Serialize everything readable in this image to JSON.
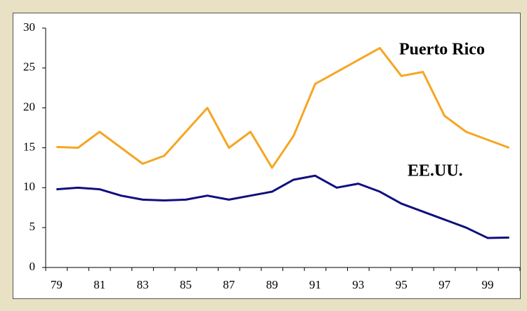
{
  "chart_data": {
    "type": "line",
    "categories": [
      "79",
      null,
      "81",
      null,
      "83",
      null,
      "85",
      null,
      "87",
      null,
      "89",
      null,
      "91",
      null,
      "93",
      null,
      "95",
      null,
      "97",
      null,
      "99",
      null
    ],
    "series": [
      {
        "name": "Puerto Rico",
        "color": "#f5a623",
        "values": [
          15.1,
          15,
          17,
          15,
          13,
          14,
          17,
          20,
          15,
          17,
          12.5,
          16.5,
          23,
          24.5,
          26,
          27.5,
          24,
          24.5,
          19,
          17,
          16,
          15
        ]
      },
      {
        "name": "EE.UU.",
        "color": "#10107f",
        "values": [
          9.8,
          10,
          9.8,
          9,
          8.5,
          8.4,
          8.5,
          9,
          8.5,
          9,
          9.5,
          11,
          11.5,
          10,
          10.5,
          9.5,
          8,
          7,
          6,
          5,
          3.7,
          3.75
        ]
      }
    ],
    "ylim": [
      0,
      30
    ],
    "yticks": [
      0,
      5,
      10,
      15,
      20,
      25,
      30
    ],
    "grid": false
  }
}
